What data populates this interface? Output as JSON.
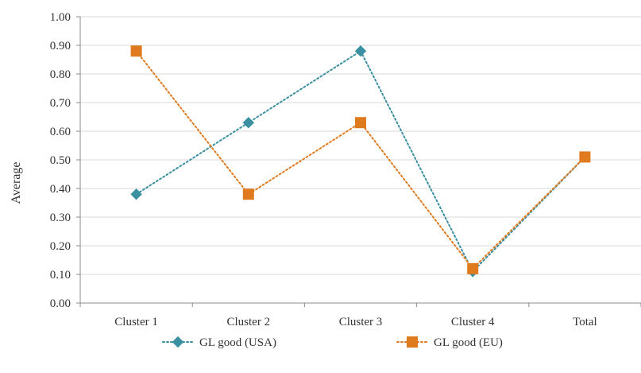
{
  "chart_data": {
    "type": "line",
    "title": "",
    "xlabel": "",
    "ylabel": "Average",
    "categories": [
      "Cluster 1",
      "Cluster 2",
      "Cluster 3",
      "Cluster 4",
      "Total"
    ],
    "ylim": [
      0,
      1
    ],
    "yticks": [
      0.0,
      0.1,
      0.2,
      0.3,
      0.4,
      0.5,
      0.6,
      0.7,
      0.8,
      0.9,
      1.0
    ],
    "ytick_labels": [
      "0.00",
      "0.10",
      "0.20",
      "0.30",
      "0.40",
      "0.50",
      "0.60",
      "0.70",
      "0.80",
      "0.90",
      "1.00"
    ],
    "grid": true,
    "legend_position": "bottom",
    "series": [
      {
        "name": "GL good (USA)",
        "values": [
          0.38,
          0.63,
          0.88,
          0.11,
          0.51
        ],
        "color": "#3a8fa0",
        "marker": "diamond",
        "line_style": "dotted"
      },
      {
        "name": "GL good (EU)",
        "values": [
          0.88,
          0.38,
          0.63,
          0.12,
          0.51
        ],
        "color": "#e07a1f",
        "marker": "square",
        "line_style": "dotted"
      }
    ]
  }
}
